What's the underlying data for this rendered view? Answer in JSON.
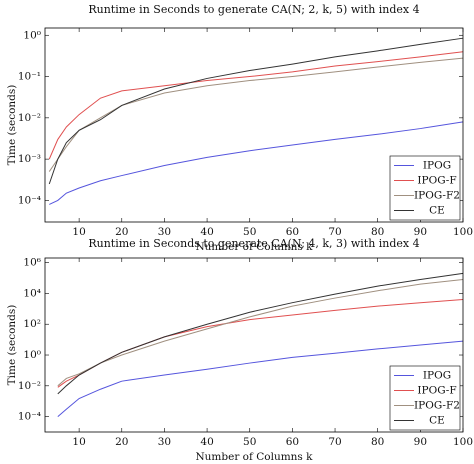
{
  "chart_data": [
    {
      "type": "line",
      "title": "Runtime in Seconds to generate CA(N; 2, k, 5) with index 4",
      "x_label": "Number of Columns k",
      "y_label": "Time (seconds)",
      "x": [
        3,
        5,
        7,
        10,
        15,
        20,
        30,
        40,
        50,
        60,
        70,
        80,
        90,
        100
      ],
      "series": [
        {
          "name": "IPOG",
          "color": "#5555dd",
          "values": [
            8e-05,
            0.0001,
            0.00015,
            0.0002,
            0.0003,
            0.0004,
            0.0007,
            0.0011,
            0.0016,
            0.0022,
            0.003,
            0.004,
            0.0055,
            0.008
          ]
        },
        {
          "name": "IPOG-F",
          "color": "#e05050",
          "values": [
            0.001,
            0.003,
            0.006,
            0.012,
            0.03,
            0.045,
            0.06,
            0.08,
            0.1,
            0.13,
            0.18,
            0.23,
            0.3,
            0.4
          ]
        },
        {
          "name": "IPOG-F2",
          "color": "#a09080",
          "values": [
            0.0005,
            0.001,
            0.002,
            0.005,
            0.01,
            0.02,
            0.04,
            0.06,
            0.08,
            0.1,
            0.13,
            0.17,
            0.22,
            0.28
          ]
        },
        {
          "name": "CE",
          "color": "#333333",
          "values": [
            0.00025,
            0.001,
            0.0025,
            0.005,
            0.009,
            0.02,
            0.05,
            0.09,
            0.14,
            0.2,
            0.3,
            0.42,
            0.6,
            0.85
          ]
        }
      ],
      "xlim": [
        2,
        100
      ],
      "xticks": [
        10,
        20,
        30,
        40,
        50,
        60,
        70,
        80,
        90,
        100
      ],
      "ylim": [
        3e-05,
        1.5
      ],
      "log_y": true,
      "yticks": [
        {
          "value": 0.0001,
          "label": "10⁻⁴"
        },
        {
          "value": 0.001,
          "label": "10⁻³"
        },
        {
          "value": 0.01,
          "label": "10⁻²"
        },
        {
          "value": 0.1,
          "label": "10⁻¹"
        },
        {
          "value": 1,
          "label": "10⁰"
        }
      ],
      "legend": "lower right"
    },
    {
      "type": "line",
      "title": "Runtime in Seconds to generate CA(N; 4, k, 3) with index 4",
      "x_label": "Number of Columns k",
      "y_label": "Time (seconds)",
      "x": [
        5,
        7,
        10,
        15,
        20,
        30,
        40,
        50,
        60,
        70,
        80,
        90,
        100
      ],
      "series": [
        {
          "name": "IPOG",
          "color": "#5555dd",
          "values": [
            0.0001,
            0.0003,
            0.0015,
            0.006,
            0.02,
            0.05,
            0.12,
            0.3,
            0.7,
            1.3,
            2.5,
            4.5,
            8
          ]
        },
        {
          "name": "IPOG-F",
          "color": "#e05050",
          "values": [
            0.008,
            0.02,
            0.05,
            0.3,
            1.5,
            15,
            70,
            200,
            400,
            800,
            1500,
            2500,
            4000
          ]
        },
        {
          "name": "IPOG-F2",
          "color": "#a09080",
          "values": [
            0.01,
            0.03,
            0.06,
            0.3,
            1,
            8,
            50,
            300,
            1500,
            5000,
            15000,
            40000,
            80000
          ]
        },
        {
          "name": "CE",
          "color": "#333333",
          "values": [
            0.003,
            0.01,
            0.05,
            0.3,
            1.5,
            15,
            100,
            600,
            2500,
            9000,
            30000,
            80000,
            200000
          ]
        }
      ],
      "xlim": [
        2,
        100
      ],
      "xticks": [
        10,
        20,
        30,
        40,
        50,
        60,
        70,
        80,
        90,
        100
      ],
      "ylim": [
        1e-05,
        2000000
      ],
      "log_y": true,
      "yticks": [
        {
          "value": 0.0001,
          "label": "10⁻⁴"
        },
        {
          "value": 0.01,
          "label": "10⁻²"
        },
        {
          "value": 1,
          "label": "10⁰"
        },
        {
          "value": 100,
          "label": "10²"
        },
        {
          "value": 10000,
          "label": "10⁴"
        },
        {
          "value": 1000000,
          "label": "10⁶"
        }
      ],
      "legend": "lower right"
    }
  ]
}
